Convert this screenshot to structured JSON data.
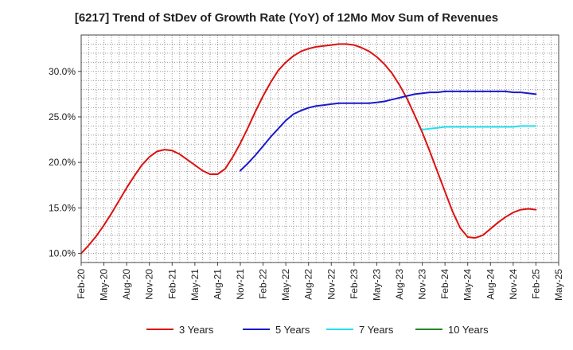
{
  "chart_data": {
    "type": "line",
    "title": "[6217]  Trend of StDev of Growth Rate (YoY) of 12Mo Mov Sum of Revenues",
    "xlabel": "",
    "ylabel": "",
    "x_range": [
      "2020-02",
      "2025-05"
    ],
    "ylim": [
      9.0,
      34.0
    ],
    "y_ticks": [
      10.0,
      15.0,
      20.0,
      25.0,
      30.0
    ],
    "y_tick_labels": [
      "10.0%",
      "15.0%",
      "20.0%",
      "25.0%",
      "30.0%"
    ],
    "x_tick_labels": [
      "Feb-20",
      "May-20",
      "Aug-20",
      "Nov-20",
      "Feb-21",
      "May-21",
      "Aug-21",
      "Nov-21",
      "Feb-22",
      "May-22",
      "Aug-22",
      "Nov-22",
      "Feb-23",
      "May-23",
      "Aug-23",
      "Nov-23",
      "Feb-24",
      "May-24",
      "Aug-24",
      "Nov-24",
      "Feb-25",
      "May-25"
    ],
    "grid": true,
    "legend_position": "bottom",
    "series": [
      {
        "name": "3 Years",
        "color": "#dd1111",
        "x": [
          "2020-02",
          "2020-03",
          "2020-04",
          "2020-05",
          "2020-06",
          "2020-07",
          "2020-08",
          "2020-09",
          "2020-10",
          "2020-11",
          "2020-12",
          "2021-01",
          "2021-02",
          "2021-03",
          "2021-04",
          "2021-05",
          "2021-06",
          "2021-07",
          "2021-08",
          "2021-09",
          "2021-10",
          "2021-11",
          "2021-12",
          "2022-01",
          "2022-02",
          "2022-03",
          "2022-04",
          "2022-05",
          "2022-06",
          "2022-07",
          "2022-08",
          "2022-09",
          "2022-10",
          "2022-11",
          "2022-12",
          "2023-01",
          "2023-02",
          "2023-03",
          "2023-04",
          "2023-05",
          "2023-06",
          "2023-07",
          "2023-08",
          "2023-09",
          "2023-10",
          "2023-11",
          "2023-12",
          "2024-01",
          "2024-02",
          "2024-03",
          "2024-04",
          "2024-05",
          "2024-06",
          "2024-07",
          "2024-08",
          "2024-09",
          "2024-10",
          "2024-11",
          "2024-12",
          "2025-01",
          "2025-02"
        ],
        "values": [
          10.0,
          10.9,
          11.9,
          13.1,
          14.4,
          15.8,
          17.2,
          18.5,
          19.7,
          20.6,
          21.2,
          21.4,
          21.3,
          20.9,
          20.3,
          19.7,
          19.1,
          18.7,
          18.7,
          19.3,
          20.6,
          22.1,
          23.8,
          25.6,
          27.3,
          28.8,
          30.1,
          31.0,
          31.7,
          32.2,
          32.5,
          32.7,
          32.8,
          32.9,
          33.0,
          33.0,
          32.9,
          32.6,
          32.2,
          31.6,
          30.8,
          29.8,
          28.5,
          27.0,
          25.2,
          23.3,
          21.2,
          19.0,
          16.8,
          14.6,
          12.8,
          11.8,
          11.7,
          12.0,
          12.7,
          13.4,
          14.0,
          14.5,
          14.8,
          14.9,
          14.8
        ],
        "x_data_note": "values listed in same order as x"
      },
      {
        "name": "5 Years",
        "color": "#1a1acc",
        "x": [
          "2021-11",
          "2021-12",
          "2022-01",
          "2022-02",
          "2022-03",
          "2022-04",
          "2022-05",
          "2022-06",
          "2022-07",
          "2022-08",
          "2022-09",
          "2022-10",
          "2022-11",
          "2022-12",
          "2023-01",
          "2023-02",
          "2023-03",
          "2023-04",
          "2023-05",
          "2023-06",
          "2023-07",
          "2023-08",
          "2023-09",
          "2023-10",
          "2023-11",
          "2023-12",
          "2024-01",
          "2024-02",
          "2024-03",
          "2024-04",
          "2024-05",
          "2024-06",
          "2024-07",
          "2024-08",
          "2024-09",
          "2024-10",
          "2024-11",
          "2024-12",
          "2025-01",
          "2025-02"
        ],
        "values": [
          19.1,
          19.9,
          20.8,
          21.8,
          22.8,
          23.7,
          24.6,
          25.3,
          25.7,
          26.0,
          26.2,
          26.3,
          26.4,
          26.5,
          26.5,
          26.5,
          26.5,
          26.5,
          26.6,
          26.7,
          26.9,
          27.1,
          27.3,
          27.5,
          27.6,
          27.7,
          27.7,
          27.8,
          27.8,
          27.8,
          27.8,
          27.8,
          27.8,
          27.8,
          27.8,
          27.8,
          27.7,
          27.7,
          27.6,
          27.5
        ]
      },
      {
        "name": "7 Years",
        "color": "#22e0ee",
        "x": [
          "2023-11",
          "2023-12",
          "2024-01",
          "2024-02",
          "2024-03",
          "2024-04",
          "2024-05",
          "2024-06",
          "2024-07",
          "2024-08",
          "2024-09",
          "2024-10",
          "2024-11",
          "2024-12",
          "2025-01",
          "2025-02"
        ],
        "values": [
          23.6,
          23.7,
          23.8,
          23.9,
          23.9,
          23.9,
          23.9,
          23.9,
          23.9,
          23.9,
          23.9,
          23.9,
          23.9,
          24.0,
          24.0,
          24.0
        ]
      },
      {
        "name": "10 Years",
        "color": "#228822",
        "x": [],
        "values": []
      }
    ]
  }
}
